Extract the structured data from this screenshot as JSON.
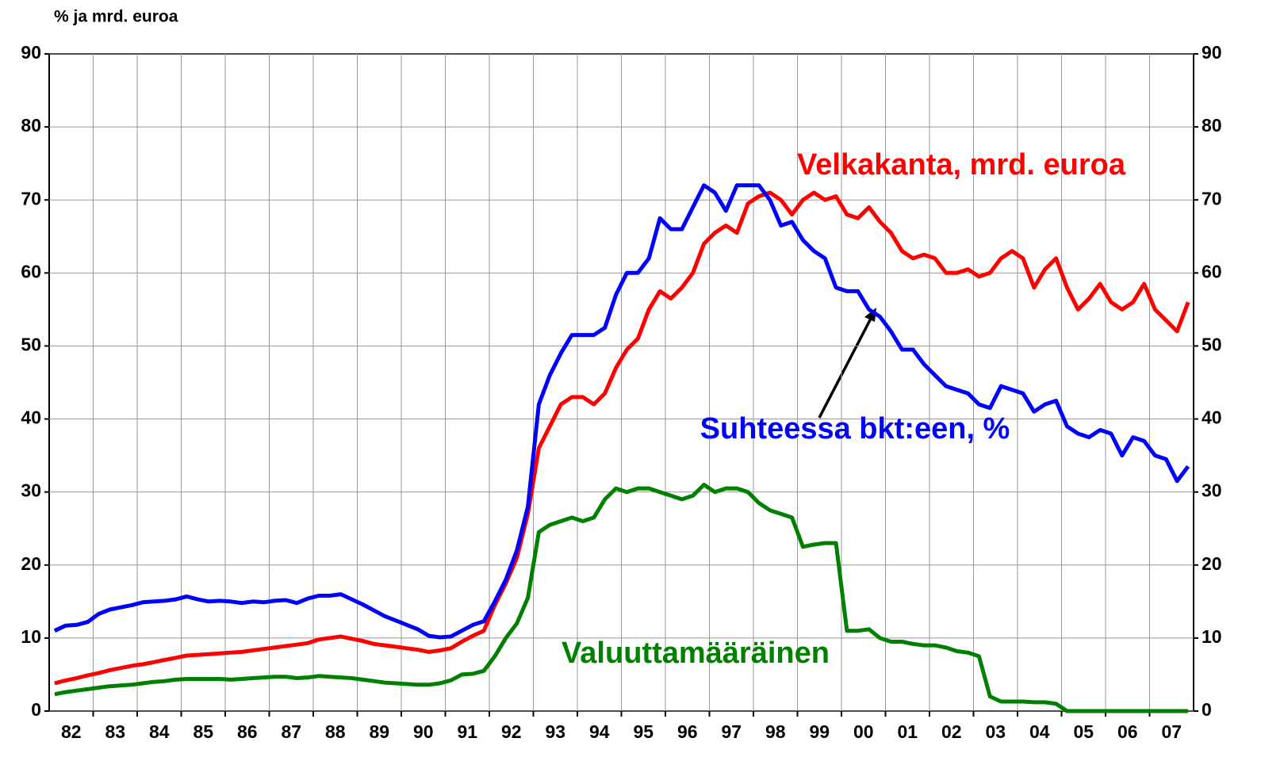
{
  "chart_data": {
    "type": "line",
    "y_label": "% ja mrd. euroa",
    "ylim": [
      0,
      90
    ],
    "yticks": [
      0,
      10,
      20,
      30,
      40,
      50,
      60,
      70,
      80,
      90
    ],
    "grid": true,
    "categories": [
      "82",
      null,
      null,
      null,
      "83",
      null,
      null,
      null,
      "84",
      null,
      null,
      null,
      "85",
      null,
      null,
      null,
      "86",
      null,
      null,
      null,
      "87",
      null,
      null,
      null,
      "88",
      null,
      null,
      null,
      "89",
      null,
      null,
      null,
      "90",
      null,
      null,
      null,
      "91",
      null,
      null,
      null,
      "92",
      null,
      null,
      null,
      "93",
      null,
      null,
      null,
      "94",
      null,
      null,
      null,
      "95",
      null,
      null,
      null,
      "96",
      null,
      null,
      null,
      "97",
      null,
      null,
      null,
      "98",
      null,
      null,
      null,
      "99",
      null,
      null,
      null,
      "00",
      null,
      null,
      null,
      "01",
      null,
      null,
      null,
      "02",
      null,
      null,
      null,
      "03",
      null,
      null,
      null,
      "04",
      null,
      null,
      null,
      "05",
      null,
      null,
      null,
      "06",
      null,
      null,
      null,
      "07",
      null,
      null,
      null
    ],
    "series": [
      {
        "name": "Velkakanta, mrd. euroa",
        "color": "#ff0000",
        "values": [
          3.8,
          4.2,
          4.5,
          4.9,
          5.2,
          5.6,
          5.9,
          6.2,
          6.4,
          6.7,
          7,
          7.3,
          7.6,
          7.7,
          7.8,
          7.9,
          8,
          8.1,
          8.3,
          8.5,
          8.7,
          8.9,
          9.1,
          9.3,
          9.8,
          10,
          10.2,
          9.9,
          9.6,
          9.2,
          9,
          8.8,
          8.6,
          8.4,
          8.1,
          8.3,
          8.6,
          9.5,
          10.3,
          11,
          14.5,
          17.5,
          21,
          27,
          36,
          39,
          42,
          43,
          43,
          42,
          43.5,
          47,
          49.5,
          51,
          55,
          57.5,
          56.5,
          58,
          60,
          64,
          65.5,
          66.5,
          65.5,
          69.5,
          70.5,
          71,
          70,
          68,
          70,
          71,
          70,
          70.5,
          68,
          67.5,
          69,
          67,
          65.5,
          63,
          62,
          62.5,
          62,
          60,
          60,
          60.5,
          59.5,
          60,
          62,
          63,
          62,
          58,
          60.5,
          62,
          58,
          55,
          56.5,
          58.5,
          56,
          55,
          56,
          58.5,
          55,
          53.5,
          52,
          56
        ]
      },
      {
        "name": "Suhteessa bkt:een, %",
        "color": "#0000ff",
        "values": [
          11,
          11.7,
          11.8,
          12.2,
          13.3,
          13.9,
          14.2,
          14.5,
          14.9,
          15,
          15.1,
          15.3,
          15.7,
          15.3,
          15,
          15.1,
          15,
          14.8,
          15,
          14.9,
          15.1,
          15.2,
          14.8,
          15.4,
          15.8,
          15.8,
          16,
          15.3,
          14.6,
          13.8,
          13,
          12.4,
          11.8,
          11.2,
          10.3,
          10.1,
          10.2,
          11,
          11.8,
          12.3,
          15,
          18,
          22,
          28,
          42,
          46,
          49,
          51.5,
          51.5,
          51.5,
          52.5,
          57,
          60,
          60,
          62,
          67.5,
          66,
          66,
          69,
          72,
          71,
          68.5,
          72,
          72,
          72,
          70,
          66.5,
          67,
          64.5,
          63,
          62,
          58,
          57.5,
          57.5,
          55,
          54,
          52,
          49.5,
          49.5,
          47.5,
          46,
          44.5,
          44,
          43.5,
          42,
          41.5,
          44.5,
          44,
          43.5,
          41,
          42,
          42.5,
          39,
          38,
          37.5,
          38.5,
          38,
          35,
          37.5,
          37,
          35,
          34.5,
          31.5,
          33.5
        ]
      },
      {
        "name": "Valuuttamääräinen",
        "color": "#008000",
        "values": [
          2.3,
          2.6,
          2.8,
          3,
          3.2,
          3.4,
          3.5,
          3.6,
          3.8,
          4,
          4.1,
          4.3,
          4.4,
          4.4,
          4.4,
          4.4,
          4.3,
          4.4,
          4.5,
          4.6,
          4.7,
          4.7,
          4.5,
          4.6,
          4.8,
          4.7,
          4.6,
          4.5,
          4.3,
          4.1,
          3.9,
          3.8,
          3.7,
          3.6,
          3.6,
          3.8,
          4.2,
          5,
          5.1,
          5.5,
          7.5,
          10,
          12,
          15.5,
          24.5,
          25.5,
          26,
          26.5,
          26,
          26.5,
          29,
          30.5,
          30,
          30.5,
          30.5,
          30,
          29.5,
          29,
          29.5,
          31,
          30,
          30.5,
          30.5,
          30,
          28.5,
          27.5,
          27,
          26.5,
          22.5,
          22.8,
          23,
          23,
          11,
          11,
          11.2,
          10,
          9.5,
          9.5,
          9.2,
          9,
          9,
          8.7,
          8.2,
          8,
          7.5,
          2,
          1.3,
          1.3,
          1.3,
          1.2,
          1.2,
          1,
          0,
          0,
          0,
          0,
          0,
          0,
          0,
          0,
          0,
          0,
          0,
          0
        ]
      }
    ]
  }
}
